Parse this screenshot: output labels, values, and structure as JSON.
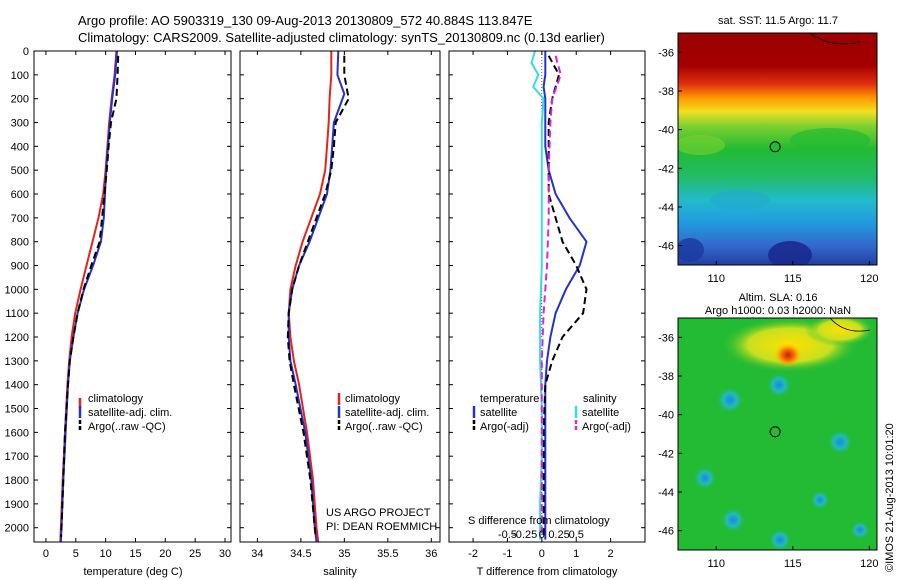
{
  "header": {
    "line1": "Argo profile: AO 5903319_130 09-Aug-2013 20130809_572 40.884S 113.847E",
    "line2": "Climatology: CARS2009. Satellite-adjusted climatology: synTS_20130809.nc (0.13d earlier)"
  },
  "colors": {
    "climatology": "#e8221b",
    "satellite": "#2233cc",
    "argo": "#000000",
    "salinity_satellite": "#33dde6",
    "salinity_argo": "#dd22dd"
  },
  "chart_data": [
    {
      "type": "line",
      "xlabel": "temperature (deg C)",
      "ylabel": "",
      "xlim": [
        -2,
        31
      ],
      "ylim": [
        2060,
        0
      ],
      "xticks": [
        0,
        5,
        10,
        15,
        20,
        25,
        30
      ],
      "yticks": [
        0,
        100,
        200,
        300,
        400,
        500,
        600,
        700,
        800,
        900,
        1000,
        1100,
        1200,
        1300,
        1400,
        1500,
        1600,
        1700,
        1800,
        1900,
        2000
      ],
      "legend": [
        "climatology",
        "satellite-adj. clim.",
        "Argo(..raw -QC)"
      ],
      "legend_position": "lower-center",
      "series": [
        {
          "name": "climatology",
          "style": "solid",
          "color": "climatology",
          "depth": [
            0,
            100,
            200,
            300,
            400,
            500,
            600,
            700,
            800,
            900,
            1000,
            1100,
            1200,
            1300,
            1400,
            1600,
            1800,
            2000,
            2060
          ],
          "values": [
            11.8,
            11.5,
            11.0,
            10.6,
            10.3,
            10.0,
            9.6,
            8.8,
            7.8,
            6.8,
            5.8,
            4.9,
            4.3,
            3.9,
            3.6,
            3.2,
            2.8,
            2.5,
            2.4
          ]
        },
        {
          "name": "satellite-adj. clim.",
          "style": "solid",
          "color": "satellite",
          "depth": [
            0,
            100,
            200,
            300,
            400,
            500,
            600,
            700,
            800,
            900,
            1000,
            1100,
            1200,
            1300,
            1400,
            1600,
            1800,
            2000,
            2060
          ],
          "values": [
            11.9,
            11.6,
            11.1,
            10.7,
            10.4,
            10.1,
            9.9,
            9.7,
            9.2,
            7.9,
            6.4,
            5.3,
            4.6,
            4.0,
            3.7,
            3.3,
            2.9,
            2.6,
            2.5
          ]
        },
        {
          "name": "Argo(..raw -QC)",
          "style": "dashed",
          "color": "argo",
          "depth": [
            20,
            100,
            200,
            300,
            400,
            500,
            600,
            700,
            800,
            900,
            1000,
            1100,
            1200,
            1300,
            1400,
            1600,
            1800,
            2000,
            2040
          ],
          "values": [
            12.1,
            12.0,
            11.8,
            10.9,
            10.5,
            10.2,
            9.8,
            9.4,
            9.0,
            7.6,
            6.3,
            5.3,
            4.6,
            4.0,
            3.7,
            3.2,
            2.9,
            2.6,
            2.5
          ]
        }
      ]
    },
    {
      "type": "line",
      "xlabel": "salinity",
      "ylabel": "",
      "xlim": [
        33.8,
        36.1
      ],
      "ylim": [
        2060,
        0
      ],
      "xticks": [
        34,
        34.5,
        35,
        35.5,
        36
      ],
      "legend": [
        "climatology",
        "satellite-adj. clim.",
        "Argo(..raw -QC)"
      ],
      "legend_position": "lower-center",
      "annotations": [
        "US ARGO PROJECT",
        "PI: DEAN ROEMMICH"
      ],
      "series": [
        {
          "name": "climatology",
          "style": "solid",
          "color": "climatology",
          "depth": [
            0,
            100,
            200,
            300,
            400,
            500,
            600,
            700,
            800,
            900,
            1000,
            1100,
            1200,
            1300,
            1400,
            1600,
            1800,
            2000,
            2060
          ],
          "values": [
            34.85,
            34.85,
            34.83,
            34.82,
            34.8,
            34.78,
            34.72,
            34.62,
            34.52,
            34.44,
            34.38,
            34.36,
            34.38,
            34.42,
            34.48,
            34.57,
            34.64,
            34.68,
            34.7
          ]
        },
        {
          "name": "satellite-adj. clim.",
          "style": "solid",
          "color": "satellite",
          "depth": [
            0,
            100,
            180,
            300,
            400,
            500,
            600,
            700,
            800,
            900,
            1000,
            1100,
            1200,
            1300,
            1400,
            1600,
            1800,
            2000,
            2060
          ],
          "values": [
            34.93,
            34.92,
            35.0,
            34.88,
            34.86,
            34.84,
            34.8,
            34.7,
            34.6,
            34.48,
            34.4,
            34.36,
            34.36,
            34.38,
            34.44,
            34.55,
            34.62,
            34.66,
            34.68
          ]
        },
        {
          "name": "Argo(..raw -QC)",
          "style": "dashed",
          "color": "argo",
          "depth": [
            20,
            100,
            200,
            300,
            400,
            500,
            600,
            700,
            800,
            900,
            1000,
            1100,
            1200,
            1300,
            1400,
            1600,
            1800,
            2000,
            2040
          ],
          "values": [
            35.0,
            35.0,
            35.05,
            34.9,
            34.88,
            34.85,
            34.78,
            34.68,
            34.58,
            34.48,
            34.4,
            34.36,
            34.35,
            34.37,
            34.42,
            34.53,
            34.61,
            34.66,
            34.67
          ]
        }
      ]
    },
    {
      "type": "line",
      "xlabel": "T difference from climatology",
      "xlabel_top": "S difference from climatology",
      "ylabel": "",
      "xlim": [
        -2.7,
        3.0
      ],
      "ylim": [
        2060,
        0
      ],
      "xticks": [
        -2,
        -1,
        0,
        1,
        2
      ],
      "s_tick_labels": [
        "-0.5",
        "-0.25",
        "0",
        "0.25",
        "0.5"
      ],
      "legend": [
        "temperature",
        "satellite",
        "Argo(-adj)",
        "salinity",
        "satellite",
        "Argo(-adj)"
      ],
      "legend_position": "lower-center",
      "series": [
        {
          "name": "satellite",
          "group": "temperature",
          "style": "solid",
          "color": "satellite",
          "depth": [
            0,
            100,
            150,
            200,
            300,
            400,
            500,
            600,
            700,
            800,
            900,
            1000,
            1100,
            1200,
            1300,
            1400,
            1600,
            1800,
            2000,
            2050
          ],
          "values": [
            0.1,
            0.1,
            0.05,
            0.1,
            0.1,
            0.1,
            0.2,
            0.4,
            0.8,
            1.3,
            1.1,
            0.7,
            0.4,
            0.25,
            0.15,
            0.1,
            0.1,
            0.1,
            0.1,
            0.1
          ]
        },
        {
          "name": "Argo(-adj)",
          "group": "temperature",
          "style": "dashed",
          "color": "argo",
          "depth": [
            20,
            100,
            200,
            300,
            400,
            500,
            600,
            700,
            800,
            900,
            1000,
            1100,
            1200,
            1300,
            1400,
            1600,
            1800,
            2000,
            2040
          ],
          "values": [
            0.2,
            0.5,
            0.3,
            0.2,
            0.2,
            0.2,
            0.2,
            0.4,
            0.6,
            1.0,
            1.3,
            1.2,
            0.6,
            0.3,
            0.1,
            0.05,
            0.05,
            0.05,
            0.05
          ]
        },
        {
          "name": "satellite",
          "group": "salinity",
          "style": "solid",
          "color": "salinity_satellite",
          "depth": [
            0,
            50,
            100,
            150,
            200,
            300,
            500,
            700,
            900,
            1100,
            1300,
            1500,
            1700,
            1900,
            2050
          ],
          "values": [
            -0.2,
            -0.3,
            -0.1,
            -0.25,
            0.05,
            0.0,
            0.0,
            0.0,
            0.0,
            -0.05,
            -0.05,
            0.0,
            0.0,
            -0.05,
            -0.05
          ]
        },
        {
          "name": "Argo(-adj)",
          "group": "salinity",
          "style": "dashed",
          "color": "salinity_argo",
          "depth": [
            20,
            100,
            200,
            300,
            500,
            700,
            900,
            1100,
            1300,
            1500,
            1700,
            1900,
            2040
          ],
          "values": [
            0.4,
            0.55,
            0.3,
            0.25,
            0.2,
            0.2,
            0.15,
            0.05,
            0.0,
            0.0,
            0.0,
            0.0,
            0.0
          ]
        }
      ]
    },
    {
      "type": "heatmap",
      "title": "sat. SST: 11.5 Argo: 11.7",
      "xlim": [
        107.5,
        120.5
      ],
      "ylim": [
        -47,
        -35
      ],
      "xticks": [
        110,
        115,
        120
      ],
      "yticks": [
        -36,
        -38,
        -40,
        -42,
        -44,
        -46
      ],
      "marker": {
        "lon": 113.847,
        "lat": -40.884
      }
    },
    {
      "type": "heatmap",
      "title_line1": "Altim. SLA: 0.16",
      "title_line2": "Argo h1000: 0.03 h2000: NaN",
      "xlim": [
        107.5,
        120.5
      ],
      "ylim": [
        -47,
        -35
      ],
      "xticks": [
        110,
        115,
        120
      ],
      "yticks": [
        -36,
        -38,
        -40,
        -42,
        -44,
        -46
      ],
      "marker": {
        "lon": 113.847,
        "lat": -40.884
      }
    }
  ],
  "side_label": "©IMOS 21-Aug-2013 10:01:20"
}
